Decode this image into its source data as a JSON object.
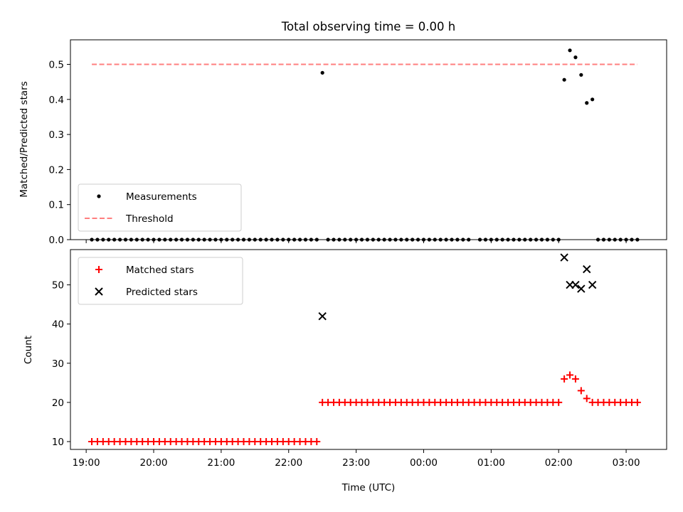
{
  "chart_data": [
    {
      "type": "scatter",
      "title": "Total observing time = 0.00 h",
      "xlabel": "",
      "ylabel": "Matched/Predicted stars",
      "xlim": [
        "18:46",
        "03:36"
      ],
      "ylim": [
        0,
        0.57
      ],
      "ytick_labels": [
        "0.0",
        "0.1",
        "0.2",
        "0.3",
        "0.4",
        "0.5"
      ],
      "yticks": [
        0,
        0.1,
        0.2,
        0.3,
        0.4,
        0.5
      ],
      "legend_position": "lower-left",
      "legend": [
        "Measurements",
        "Threshold"
      ],
      "series": [
        {
          "name": "Measurements",
          "marker": "dot",
          "color": "#000000",
          "zero_segments": [
            {
              "start": "19:05",
              "end": "22:25",
              "step_minutes": 5
            },
            {
              "start": "22:35",
              "end": "00:40",
              "step_minutes": 5
            },
            {
              "start": "00:50",
              "end": "02:00",
              "step_minutes": 5
            },
            {
              "start": "02:35",
              "end": "03:10",
              "step_minutes": 5
            }
          ],
          "points": [
            {
              "x": "22:30",
              "y": 0.476
            },
            {
              "x": "02:05",
              "y": 0.456
            },
            {
              "x": "02:10",
              "y": 0.54
            },
            {
              "x": "02:15",
              "y": 0.52
            },
            {
              "x": "02:20",
              "y": 0.47
            },
            {
              "x": "02:25",
              "y": 0.39
            },
            {
              "x": "02:30",
              "y": 0.4
            }
          ]
        },
        {
          "name": "Threshold",
          "style": "dashed",
          "color": "#ff7f7f",
          "x": [
            "19:05",
            "03:10"
          ],
          "y": [
            0.5,
            0.5
          ]
        }
      ]
    },
    {
      "type": "scatter",
      "title": "",
      "xlabel": "Time (UTC)",
      "ylabel": "Count",
      "xlim": [
        "18:46",
        "03:36"
      ],
      "ylim": [
        8,
        59
      ],
      "ytick_labels": [
        "10",
        "20",
        "30",
        "40",
        "50"
      ],
      "yticks": [
        10,
        20,
        30,
        40,
        50
      ],
      "xtick_labels": [
        "19:00",
        "20:00",
        "21:00",
        "22:00",
        "23:00",
        "00:00",
        "01:00",
        "02:00",
        "03:00"
      ],
      "legend_position": "upper-left",
      "legend": [
        "Matched stars",
        "Predicted stars"
      ],
      "series": [
        {
          "name": "Matched stars",
          "marker": "plus",
          "color": "#ff0000",
          "constant_segments": [
            {
              "start": "19:05",
              "end": "22:25",
              "step_minutes": 5,
              "y": 10
            },
            {
              "start": "22:30",
              "end": "02:00",
              "step_minutes": 5,
              "y": 20
            },
            {
              "start": "02:35",
              "end": "03:10",
              "step_minutes": 5,
              "y": 20
            }
          ],
          "points": [
            {
              "x": "02:05",
              "y": 26
            },
            {
              "x": "02:10",
              "y": 27
            },
            {
              "x": "02:15",
              "y": 26
            },
            {
              "x": "02:20",
              "y": 23
            },
            {
              "x": "02:25",
              "y": 21
            },
            {
              "x": "02:30",
              "y": 20
            }
          ]
        },
        {
          "name": "Predicted stars",
          "marker": "x",
          "color": "#000000",
          "points": [
            {
              "x": "22:30",
              "y": 42
            },
            {
              "x": "02:05",
              "y": 57
            },
            {
              "x": "02:10",
              "y": 50
            },
            {
              "x": "02:15",
              "y": 50
            },
            {
              "x": "02:20",
              "y": 49
            },
            {
              "x": "02:25",
              "y": 54
            },
            {
              "x": "02:30",
              "y": 50
            }
          ]
        }
      ]
    }
  ]
}
